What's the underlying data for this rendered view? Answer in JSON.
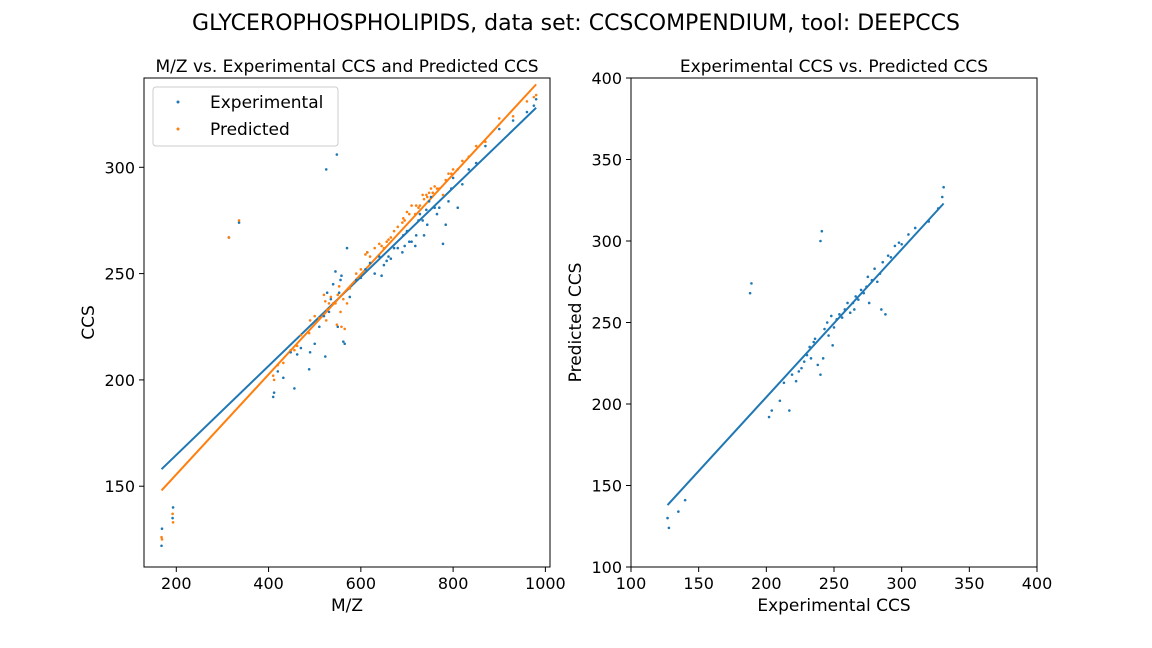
{
  "figure": {
    "suptitle": "GLYCEROPHOSPHOLIPIDS, data set: CCSCOMPENDIUM, tool: DEEPCCS"
  },
  "colors": {
    "experimental": "#1f77b4",
    "predicted": "#ff7f0e"
  },
  "chart_data": [
    {
      "type": "scatter",
      "title": "M/Z vs. Experimental CCS and Predicted CCS",
      "xlabel": "M/Z",
      "ylabel": "CCS",
      "xlim": [
        130,
        1010
      ],
      "ylim": [
        112,
        342
      ],
      "xticks": [
        200,
        400,
        600,
        800,
        1000
      ],
      "yticks": [
        150,
        200,
        250,
        300
      ],
      "grid": false,
      "legend": "upper-left",
      "series": [
        {
          "name": "Experimental",
          "color": "#1f77b4",
          "points": [
            [
              168,
              122
            ],
            [
              169,
              130
            ],
            [
              192,
              135
            ],
            [
              193,
              140
            ],
            [
              314,
              267
            ],
            [
              336,
              274
            ],
            [
              410,
              192
            ],
            [
              412,
              194
            ],
            [
              420,
              204
            ],
            [
              432,
              201
            ],
            [
              448,
              213
            ],
            [
              456,
              196
            ],
            [
              462,
              212
            ],
            [
              470,
              215
            ],
            [
              488,
              205
            ],
            [
              490,
              213
            ],
            [
              500,
              217
            ],
            [
              510,
              225
            ],
            [
              520,
              230
            ],
            [
              523,
              211
            ],
            [
              525,
              299
            ],
            [
              527,
              241
            ],
            [
              531,
              232
            ],
            [
              535,
              238
            ],
            [
              540,
              245
            ],
            [
              545,
              251
            ],
            [
              548,
              306
            ],
            [
              550,
              225
            ],
            [
              553,
              241
            ],
            [
              556,
              247
            ],
            [
              558,
              249
            ],
            [
              562,
              218
            ],
            [
              565,
              217
            ],
            [
              570,
              262
            ],
            [
              576,
              239
            ],
            [
              590,
              247
            ],
            [
              600,
              248
            ],
            [
              610,
              252
            ],
            [
              614,
              260
            ],
            [
              620,
              255
            ],
            [
              630,
              250
            ],
            [
              640,
              258
            ],
            [
              645,
              249
            ],
            [
              650,
              254
            ],
            [
              656,
              256
            ],
            [
              660,
              258
            ],
            [
              665,
              257
            ],
            [
              672,
              262
            ],
            [
              680,
              262
            ],
            [
              690,
              260
            ],
            [
              692,
              268
            ],
            [
              695,
              263
            ],
            [
              700,
              270
            ],
            [
              705,
              265
            ],
            [
              710,
              265
            ],
            [
              718,
              263
            ],
            [
              720,
              268
            ],
            [
              725,
              275
            ],
            [
              728,
              278
            ],
            [
              734,
              275
            ],
            [
              737,
              268
            ],
            [
              742,
              280
            ],
            [
              744,
              273
            ],
            [
              748,
              284
            ],
            [
              752,
              286
            ],
            [
              756,
              288
            ],
            [
              760,
              281
            ],
            [
              765,
              278
            ],
            [
              770,
              281
            ],
            [
              778,
              264
            ],
            [
              784,
              273
            ],
            [
              790,
              284
            ],
            [
              796,
              290
            ],
            [
              800,
              295
            ],
            [
              810,
              281
            ],
            [
              820,
              292
            ],
            [
              834,
              299
            ],
            [
              850,
              302
            ],
            [
              870,
              310
            ],
            [
              900,
              318
            ],
            [
              930,
              322
            ],
            [
              960,
              326
            ],
            [
              975,
              329
            ],
            [
              980,
              332
            ]
          ]
        },
        {
          "name": "Predicted",
          "color": "#ff7f0e",
          "points": [
            [
              168,
              126
            ],
            [
              169,
              125
            ],
            [
              192,
              137
            ],
            [
              193,
              133
            ],
            [
              314,
              267
            ],
            [
              336,
              275
            ],
            [
              410,
              202
            ],
            [
              412,
              200
            ],
            [
              420,
              207
            ],
            [
              432,
              208
            ],
            [
              448,
              214
            ],
            [
              456,
              214
            ],
            [
              462,
              216
            ],
            [
              470,
              221
            ],
            [
              488,
              222
            ],
            [
              490,
              228
            ],
            [
              500,
              230
            ],
            [
              510,
              229
            ],
            [
              520,
              240
            ],
            [
              523,
              237
            ],
            [
              525,
              228
            ],
            [
              527,
              233
            ],
            [
              531,
              236
            ],
            [
              535,
              239
            ],
            [
              540,
              236
            ],
            [
              545,
              236
            ],
            [
              548,
              226
            ],
            [
              550,
              240
            ],
            [
              553,
              244
            ],
            [
              556,
              232
            ],
            [
              558,
              225
            ],
            [
              562,
              238
            ],
            [
              565,
              224
            ],
            [
              570,
              236
            ],
            [
              576,
              243
            ],
            [
              590,
              250
            ],
            [
              600,
              252
            ],
            [
              610,
              259
            ],
            [
              614,
              260
            ],
            [
              620,
              258
            ],
            [
              630,
              262
            ],
            [
              640,
              264
            ],
            [
              645,
              263
            ],
            [
              650,
              262
            ],
            [
              656,
              265
            ],
            [
              660,
              266
            ],
            [
              665,
              267
            ],
            [
              672,
              270
            ],
            [
              680,
              272
            ],
            [
              690,
              274
            ],
            [
              692,
              276
            ],
            [
              695,
              275
            ],
            [
              700,
              279
            ],
            [
              705,
              278
            ],
            [
              710,
              282
            ],
            [
              718,
              278
            ],
            [
              720,
              282
            ],
            [
              725,
              281
            ],
            [
              728,
              282
            ],
            [
              734,
              287
            ],
            [
              737,
              285
            ],
            [
              742,
              287
            ],
            [
              744,
              286
            ],
            [
              748,
              288
            ],
            [
              752,
              290
            ],
            [
              756,
              288
            ],
            [
              760,
              291
            ],
            [
              765,
              290
            ],
            [
              770,
              290
            ],
            [
              778,
              287
            ],
            [
              784,
              294
            ],
            [
              790,
              297
            ],
            [
              796,
              297
            ],
            [
              800,
              299
            ],
            [
              810,
              299
            ],
            [
              820,
              303
            ],
            [
              834,
              305
            ],
            [
              850,
              310
            ],
            [
              870,
              312
            ],
            [
              900,
              323
            ],
            [
              930,
              324
            ],
            [
              960,
              331
            ],
            [
              975,
              333
            ],
            [
              980,
              334
            ]
          ]
        }
      ],
      "fit_lines": [
        {
          "series": "Experimental",
          "color": "#1f77b4",
          "x": [
            168,
            980
          ],
          "y": [
            158,
            328
          ]
        },
        {
          "series": "Predicted",
          "color": "#ff7f0e",
          "x": [
            168,
            980
          ],
          "y": [
            148,
            339
          ]
        }
      ]
    },
    {
      "type": "scatter",
      "title": "Experimental CCS vs. Predicted CCS",
      "xlabel": "Experimental CCS",
      "ylabel": "Predicted CCS",
      "xlim": [
        100,
        400
      ],
      "ylim": [
        100,
        400
      ],
      "xticks": [
        100,
        150,
        200,
        250,
        300,
        350,
        400
      ],
      "yticks": [
        100,
        150,
        200,
        250,
        300,
        350,
        400
      ],
      "grid": false,
      "series": [
        {
          "color": "#1f77b4",
          "points": [
            [
              127,
              130
            ],
            [
              128,
              124
            ],
            [
              135,
              134
            ],
            [
              140,
              141
            ],
            [
              188,
              268
            ],
            [
              189,
              274
            ],
            [
              202,
              192
            ],
            [
              204,
              196
            ],
            [
              210,
              202
            ],
            [
              213,
              213
            ],
            [
              217,
              196
            ],
            [
              219,
              218
            ],
            [
              222,
              214
            ],
            [
              224,
              220
            ],
            [
              226,
              222
            ],
            [
              228,
              226
            ],
            [
              230,
              230
            ],
            [
              232,
              235
            ],
            [
              233,
              228
            ],
            [
              235,
              238
            ],
            [
              236,
              240
            ],
            [
              238,
              224
            ],
            [
              240,
              218
            ],
            [
              240,
              300
            ],
            [
              241,
              306
            ],
            [
              242,
              228
            ],
            [
              243,
              246
            ],
            [
              245,
              250
            ],
            [
              246,
              242
            ],
            [
              248,
              254
            ],
            [
              249,
              236
            ],
            [
              250,
              247
            ],
            [
              252,
              252
            ],
            [
              254,
              255
            ],
            [
              256,
              253
            ],
            [
              258,
              258
            ],
            [
              260,
              262
            ],
            [
              262,
              256
            ],
            [
              264,
              262
            ],
            [
              265,
              258
            ],
            [
              266,
              266
            ],
            [
              268,
              264
            ],
            [
              270,
              270
            ],
            [
              272,
              268
            ],
            [
              274,
              272
            ],
            [
              275,
              278
            ],
            [
              276,
              262
            ],
            [
              278,
              276
            ],
            [
              280,
              283
            ],
            [
              282,
              275
            ],
            [
              284,
              280
            ],
            [
              285,
              258
            ],
            [
              286,
              287
            ],
            [
              288,
              255
            ],
            [
              290,
              291
            ],
            [
              292,
              290
            ],
            [
              295,
              297
            ],
            [
              298,
              299
            ],
            [
              300,
              298
            ],
            [
              305,
              304
            ],
            [
              310,
              308
            ],
            [
              320,
              312
            ],
            [
              327,
              320
            ],
            [
              330,
              327
            ],
            [
              331,
              333
            ]
          ]
        }
      ],
      "fit_lines": [
        {
          "color": "#1f77b4",
          "x": [
            127,
            331
          ],
          "y": [
            138,
            323
          ]
        }
      ]
    }
  ]
}
